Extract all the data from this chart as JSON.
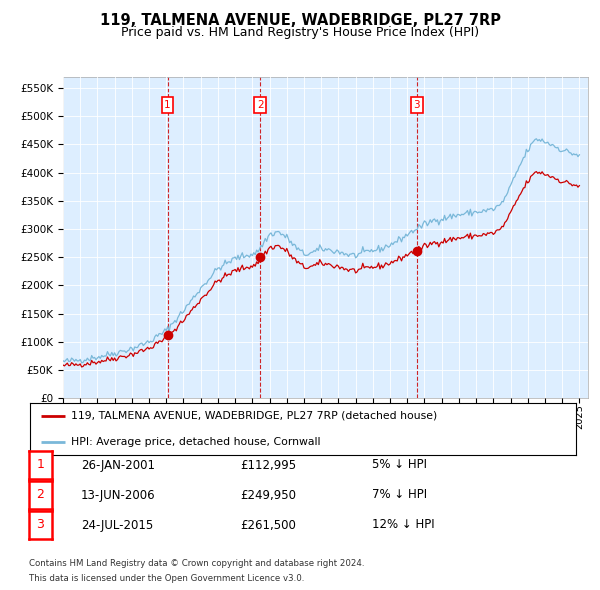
{
  "title": "119, TALMENA AVENUE, WADEBRIDGE, PL27 7RP",
  "subtitle": "Price paid vs. HM Land Registry's House Price Index (HPI)",
  "legend_line1": "119, TALMENA AVENUE, WADEBRIDGE, PL27 7RP (detached house)",
  "legend_line2": "HPI: Average price, detached house, Cornwall",
  "footer_line1": "Contains HM Land Registry data © Crown copyright and database right 2024.",
  "footer_line2": "This data is licensed under the Open Government Licence v3.0.",
  "table_rows": [
    {
      "num": 1,
      "date": "26-JAN-2001",
      "price": "£112,995",
      "pct": "5% ↓ HPI"
    },
    {
      "num": 2,
      "date": "13-JUN-2006",
      "price": "£249,950",
      "pct": "7% ↓ HPI"
    },
    {
      "num": 3,
      "date": "24-JUL-2015",
      "price": "£261,500",
      "pct": "12% ↓ HPI"
    }
  ],
  "hpi_color": "#7ab8d9",
  "price_color": "#cc0000",
  "vline_color": "#cc0000",
  "background_color": "#ddeeff",
  "ylim": [
    0,
    570000
  ],
  "yticks": [
    0,
    50000,
    100000,
    150000,
    200000,
    250000,
    300000,
    350000,
    400000,
    450000,
    500000,
    550000
  ],
  "title_fontsize": 10.5,
  "subtitle_fontsize": 9.0,
  "sale_times": [
    2001.071,
    2006.449,
    2015.558
  ],
  "sale_prices": [
    112995,
    249950,
    261500
  ],
  "hpi_anchors_x": [
    1995.0,
    1996.0,
    1997.0,
    1998.0,
    1999.0,
    2000.0,
    2001.0,
    2002.0,
    2003.0,
    2004.0,
    2005.0,
    2006.25,
    2007.0,
    2007.5,
    2008.0,
    2008.5,
    2009.0,
    2009.5,
    2010.0,
    2011.0,
    2011.5,
    2012.0,
    2012.5,
    2013.0,
    2013.5,
    2014.0,
    2014.5,
    2015.0,
    2015.5,
    2016.0,
    2016.5,
    2017.0,
    2017.5,
    2018.0,
    2018.5,
    2019.0,
    2019.5,
    2020.0,
    2020.5,
    2021.0,
    2021.5,
    2022.0,
    2022.5,
    2023.0,
    2023.5,
    2024.0,
    2024.5,
    2025.0
  ],
  "hpi_anchors_y": [
    65000,
    68000,
    73000,
    80000,
    88000,
    100000,
    120000,
    155000,
    195000,
    230000,
    248000,
    258000,
    290000,
    295000,
    285000,
    268000,
    255000,
    258000,
    265000,
    260000,
    255000,
    253000,
    258000,
    262000,
    265000,
    272000,
    280000,
    290000,
    300000,
    308000,
    315000,
    318000,
    322000,
    325000,
    328000,
    330000,
    332000,
    335000,
    345000,
    375000,
    410000,
    440000,
    460000,
    455000,
    448000,
    440000,
    435000,
    430000
  ]
}
